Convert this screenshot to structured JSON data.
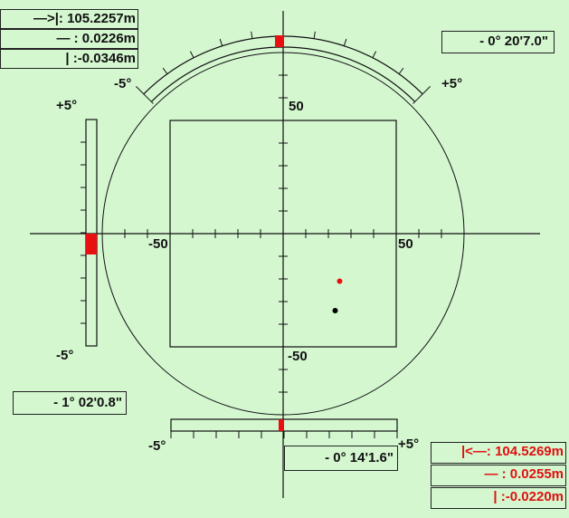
{
  "colors": {
    "background": "#d4f7d0",
    "marker": "#e81010",
    "line": "#111111"
  },
  "top_left_readout": {
    "distance": "—>|: 105.2257m",
    "horizontal": "— : 0.0226m",
    "vertical": "| :-0.0346m"
  },
  "bottom_right_readout": {
    "distance": "|<—: 104.5269m",
    "horizontal": "— : 0.0255m",
    "vertical": "| :-0.0220m"
  },
  "top_angle": "- 0° 20'7.0\"",
  "left_angle": "- 1° 02'0.8\"",
  "bottom_angle": "- 0° 14'1.6\"",
  "scale_labels": {
    "top_min": "-5°",
    "top_max": "+5°",
    "left_max": "+5°",
    "left_min": "-5°",
    "bottom_min": "-5°",
    "bottom_max": "+5°"
  },
  "axis_labels": {
    "y_pos": "50",
    "y_neg": "-50",
    "x_pos": "50",
    "x_neg": "-50"
  },
  "points": [
    {
      "color": "#e81010",
      "x": 25,
      "y": -21
    },
    {
      "color": "#000000",
      "x": 23,
      "y": -34
    }
  ]
}
